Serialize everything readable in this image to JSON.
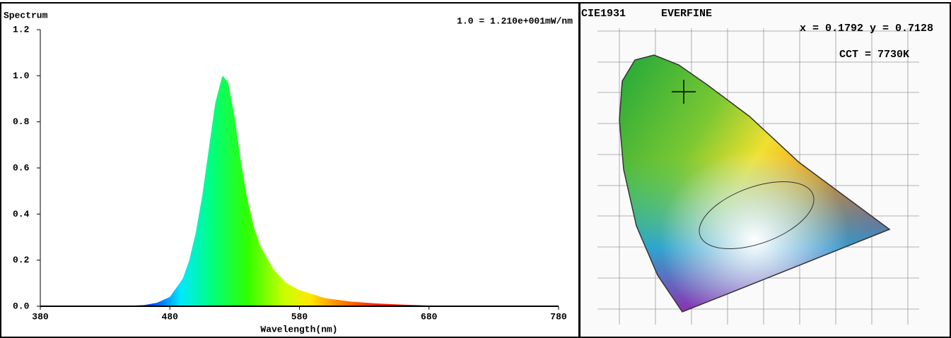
{
  "chart_data": {
    "type": "area",
    "title": "Spectrum",
    "annotation": "1.0 = 1.210e+001mW/nm",
    "x_label": "Wavelength(nm)",
    "x": [
      440,
      460,
      470,
      480,
      490,
      495,
      500,
      505,
      510,
      515,
      520,
      521,
      525,
      530,
      535,
      540,
      545,
      550,
      560,
      570,
      580,
      600,
      620,
      640,
      660,
      680,
      700
    ],
    "values": [
      0,
      0.005,
      0.015,
      0.04,
      0.12,
      0.2,
      0.32,
      0.48,
      0.68,
      0.88,
      0.99,
      1.0,
      0.97,
      0.82,
      0.62,
      0.46,
      0.34,
      0.26,
      0.16,
      0.1,
      0.07,
      0.035,
      0.02,
      0.012,
      0.007,
      0.003,
      0
    ],
    "xlim": [
      380,
      780
    ],
    "xticks": [
      380,
      480,
      580,
      680,
      780
    ],
    "ylim": [
      0,
      1.2
    ],
    "yticks": [
      {
        "value": 0,
        "label": "0.0"
      },
      0.2,
      0.4,
      0.6,
      0.8,
      {
        "value": 1,
        "label": "1.0"
      },
      1.2
    ]
  },
  "cie": {
    "title": "CIE1931",
    "brand": "EVERFINE",
    "coords": "x = 0.1792 y = 0.7128",
    "cct": "CCT = 7730K"
  }
}
